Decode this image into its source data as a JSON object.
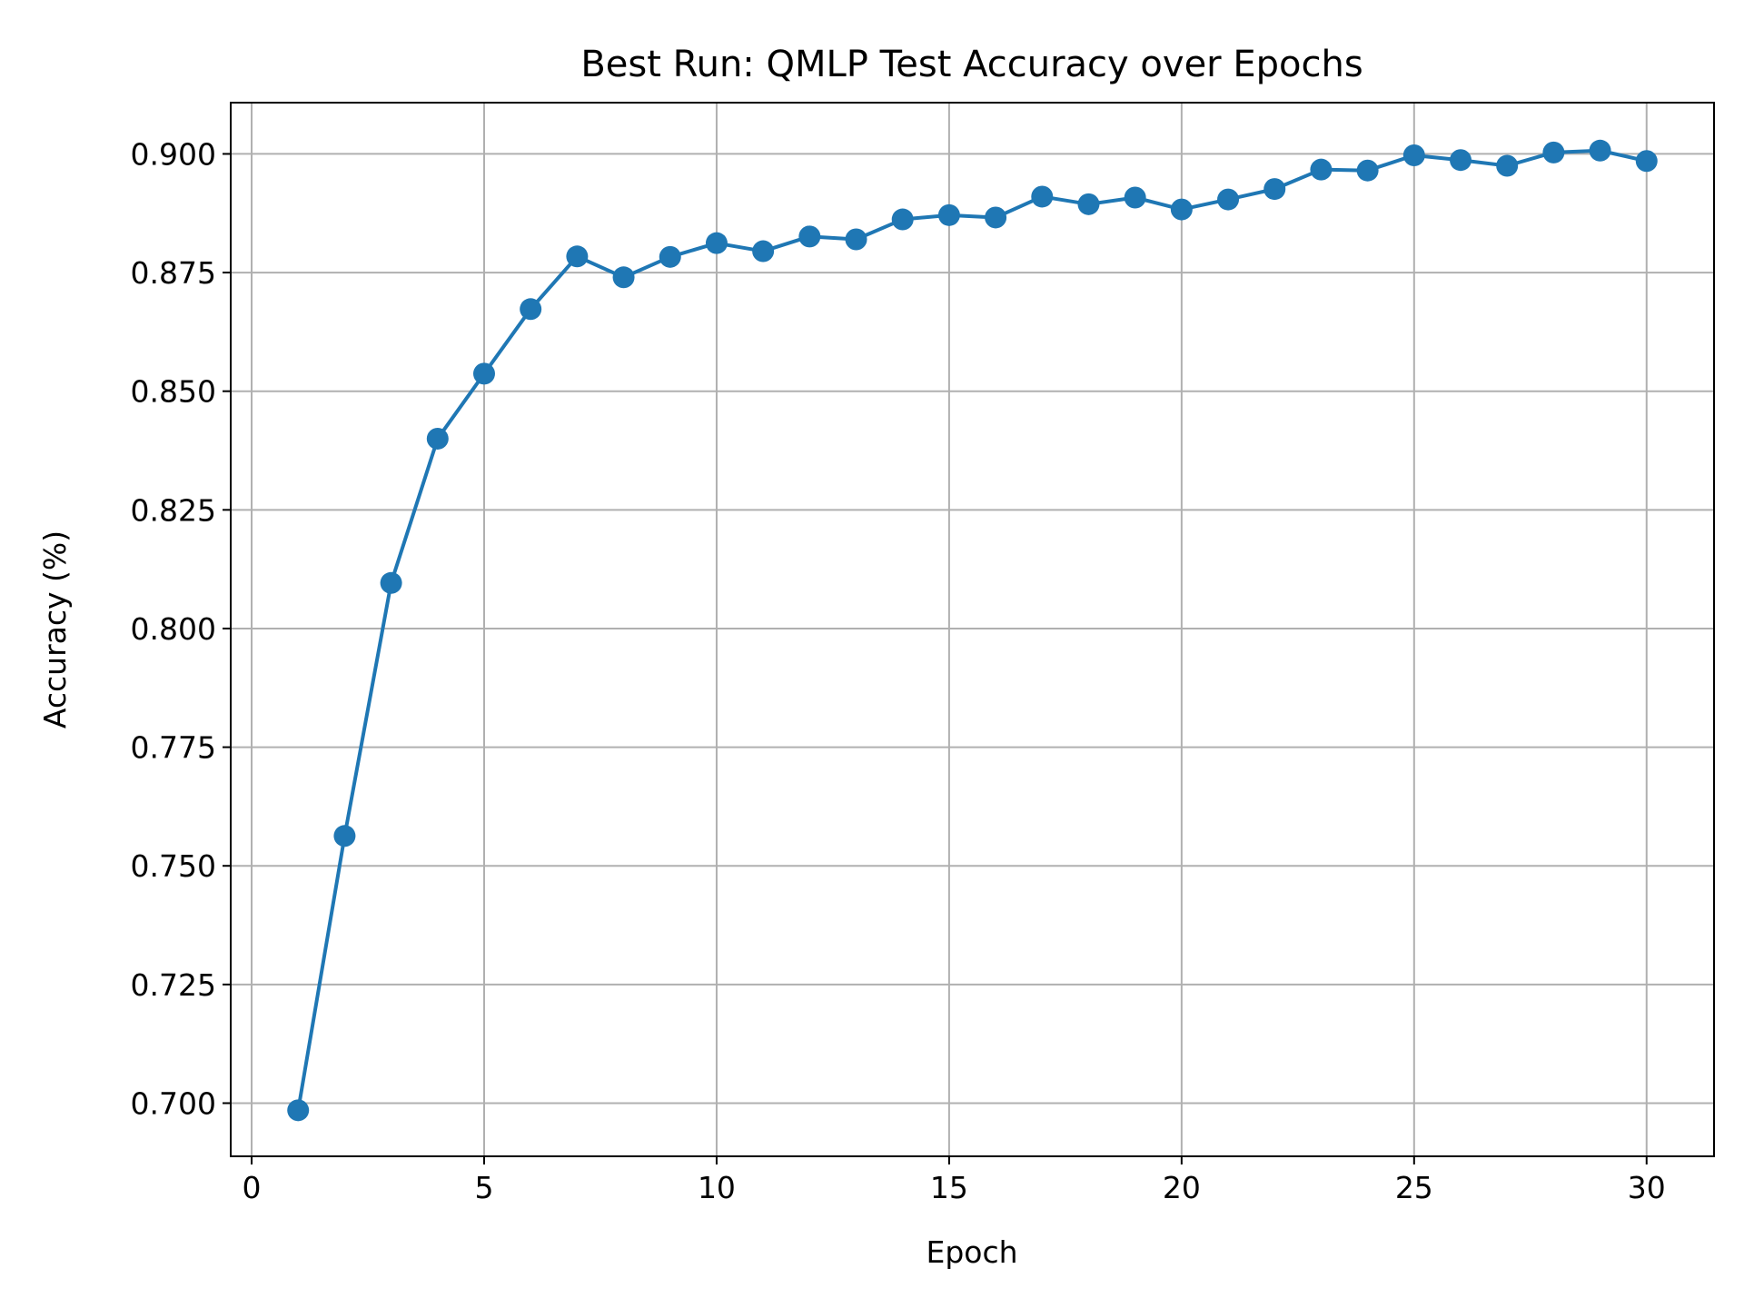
{
  "chart_data": {
    "type": "line",
    "title": "Best Run: QMLP Test Accuracy over Epochs",
    "xlabel": "Epoch",
    "ylabel": "Accuracy (%)",
    "xlim": [
      -0.45,
      31.45
    ],
    "ylim": [
      0.6888,
      0.9108
    ],
    "xticks": [
      0,
      5,
      10,
      15,
      20,
      25,
      30
    ],
    "xtick_labels": [
      "0",
      "5",
      "10",
      "15",
      "20",
      "25",
      "30"
    ],
    "yticks": [
      0.7,
      0.725,
      0.75,
      0.775,
      0.8,
      0.825,
      0.85,
      0.875,
      0.9
    ],
    "ytick_labels": [
      "0.700",
      "0.725",
      "0.750",
      "0.775",
      "0.800",
      "0.825",
      "0.850",
      "0.875",
      "0.900"
    ],
    "grid": true,
    "marker": "circle",
    "series": [
      {
        "color": "#1f77b4",
        "x": [
          1,
          2,
          3,
          4,
          5,
          6,
          7,
          8,
          9,
          10,
          11,
          12,
          13,
          14,
          15,
          16,
          17,
          18,
          19,
          20,
          21,
          22,
          23,
          24,
          25,
          26,
          27,
          28,
          29,
          30
        ],
        "y": [
          0.6985,
          0.7563,
          0.8096,
          0.84,
          0.8537,
          0.8673,
          0.8784,
          0.874,
          0.8783,
          0.8812,
          0.8795,
          0.8826,
          0.882,
          0.8862,
          0.8871,
          0.8866,
          0.891,
          0.8894,
          0.8908,
          0.8883,
          0.8904,
          0.8926,
          0.8967,
          0.8965,
          0.8997,
          0.8987,
          0.8975,
          0.9003,
          0.9007,
          0.8985
        ]
      }
    ]
  }
}
